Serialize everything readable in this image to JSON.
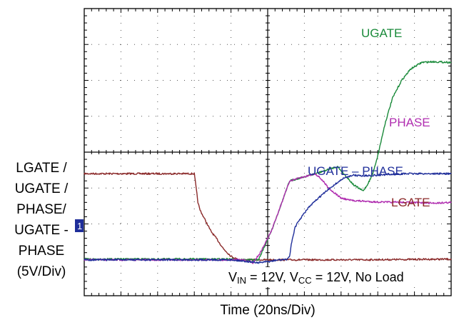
{
  "chart_data": {
    "type": "line",
    "title": "",
    "xlabel": "Time (20ns/Div)",
    "ylabel_lines": [
      "LGATE /",
      "UGATE /",
      "PHASE/",
      "UGATE -",
      "PHASE",
      "(5V/Div)"
    ],
    "x_divisions": 10,
    "y_divisions": 8,
    "x_unit": "ns",
    "x_per_div": 20,
    "y_unit": "V",
    "y_per_div": 5,
    "xlim": [
      0,
      200
    ],
    "ylim": [
      -5,
      35
    ],
    "grid": true,
    "ground_marker": "1",
    "annotation": {
      "segments": [
        {
          "text": "V",
          "sub": false
        },
        {
          "text": "IN",
          "sub": true
        },
        {
          "text": " = 12V, V",
          "sub": false
        },
        {
          "text": "CC",
          "sub": true
        },
        {
          "text": " = 12V, No Load",
          "sub": false
        }
      ]
    },
    "series": [
      {
        "name": "UGATE",
        "color": "#1a8a3a",
        "points": [
          [
            0,
            0.1
          ],
          [
            50,
            0.1
          ],
          [
            82,
            0.1
          ],
          [
            87,
            0
          ],
          [
            95,
            0
          ],
          [
            102,
            4
          ],
          [
            112,
            11
          ],
          [
            126,
            12
          ],
          [
            138,
            13
          ],
          [
            147,
            10.4
          ],
          [
            152,
            9.6
          ],
          [
            154,
            10.3
          ],
          [
            157,
            11.8
          ],
          [
            160,
            14.5
          ],
          [
            164,
            19
          ],
          [
            168,
            22.5
          ],
          [
            173,
            25
          ],
          [
            178,
            26.6
          ],
          [
            184,
            27.5
          ],
          [
            190,
            27.6
          ],
          [
            200,
            27.5
          ]
        ]
      },
      {
        "name": "PHASE",
        "color": "#b02db0",
        "points": [
          [
            0,
            0
          ],
          [
            82,
            0
          ],
          [
            87,
            0
          ],
          [
            92,
            -0.4
          ],
          [
            96,
            1
          ],
          [
            102,
            4
          ],
          [
            112,
            11
          ],
          [
            126,
            12
          ],
          [
            129,
            11.3
          ],
          [
            134,
            9.8
          ],
          [
            140,
            8.6
          ],
          [
            145,
            8.3
          ],
          [
            150,
            8.2
          ],
          [
            160,
            8.05
          ],
          [
            175,
            8
          ],
          [
            190,
            7.9
          ],
          [
            200,
            8
          ]
        ]
      },
      {
        "name": "UGATE – PHASE",
        "color": "#1f2e9a",
        "points": [
          [
            0,
            0
          ],
          [
            80,
            0
          ],
          [
            88,
            -0.2
          ],
          [
            95,
            -0.4
          ],
          [
            102,
            -0.2
          ],
          [
            106,
            0
          ],
          [
            110,
            0
          ],
          [
            112,
            0.5
          ],
          [
            113,
            2.4
          ],
          [
            115,
            4.6
          ],
          [
            118,
            5.8
          ],
          [
            122,
            7.2
          ],
          [
            128,
            8.7
          ],
          [
            135,
            10.2
          ],
          [
            141,
            11.3
          ],
          [
            146,
            11.8
          ],
          [
            152,
            11.7
          ],
          [
            160,
            11.8
          ],
          [
            175,
            12
          ],
          [
            190,
            12
          ],
          [
            200,
            12
          ]
        ]
      },
      {
        "name": "LGATE",
        "color": "#8b2a2a",
        "points": [
          [
            0,
            12
          ],
          [
            57,
            12
          ],
          [
            60,
            12
          ],
          [
            62,
            8
          ],
          [
            63,
            7
          ],
          [
            65,
            6
          ],
          [
            67,
            5
          ],
          [
            69,
            4
          ],
          [
            72,
            3
          ],
          [
            76,
            1.5
          ],
          [
            80,
            0.5
          ],
          [
            84,
            0
          ],
          [
            90,
            0
          ],
          [
            100,
            0
          ],
          [
            110,
            0
          ],
          [
            150,
            0
          ],
          [
            200,
            0.1
          ]
        ]
      }
    ],
    "series_labels": [
      "UGATE",
      "PHASE",
      "UGATE – PHASE",
      "LGATE"
    ]
  }
}
